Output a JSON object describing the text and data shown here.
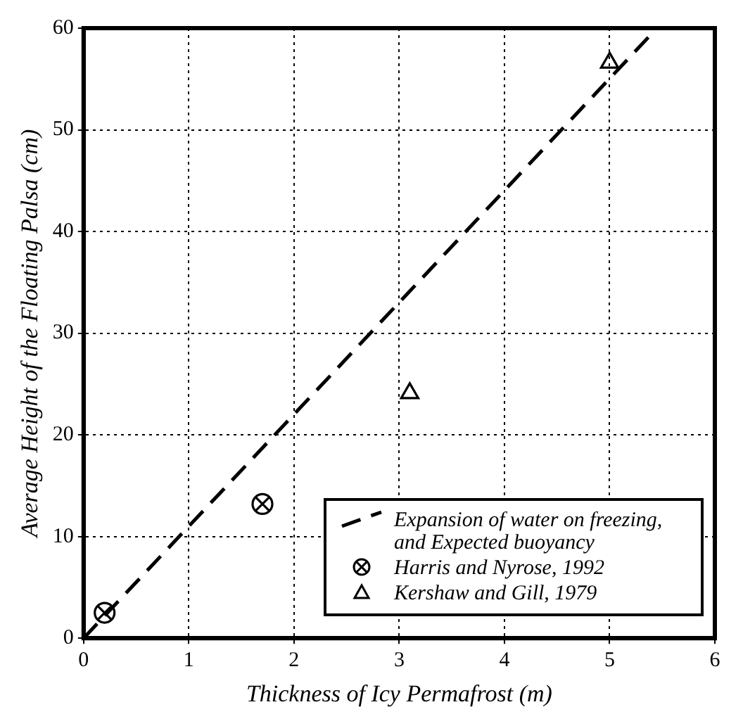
{
  "chart_data": {
    "type": "scatter",
    "xlabel": "Thickness of Icy Permafrost (m)",
    "ylabel": "Average Height of the Floating Palsa (cm)",
    "xlim": [
      0,
      6
    ],
    "xticks": [
      0,
      1,
      2,
      3,
      4,
      5,
      6
    ],
    "ylim": [
      0,
      60
    ],
    "yticks": [
      0,
      10,
      20,
      30,
      40,
      50,
      60
    ],
    "grid": true,
    "legend": "bottom right",
    "series": [
      {
        "name": "Expansion of water on freezing, and Expected buoyancy",
        "type": "line",
        "line_style": "dashed",
        "marker": "none",
        "color": "#000000",
        "x": [
          0,
          5.45
        ],
        "values": [
          0,
          60
        ]
      },
      {
        "name": "Harris and Nyrose, 1992",
        "type": "scatter",
        "marker": "circle",
        "color": "#000000",
        "x": [
          0.2,
          1.7
        ],
        "values": [
          2.5,
          13.2
        ]
      },
      {
        "name": "Kershaw and Gill, 1979",
        "type": "scatter",
        "marker": "triangle",
        "color": "#000000",
        "x": [
          3.1,
          5.0
        ],
        "values": [
          24.1,
          56.6
        ]
      }
    ]
  }
}
